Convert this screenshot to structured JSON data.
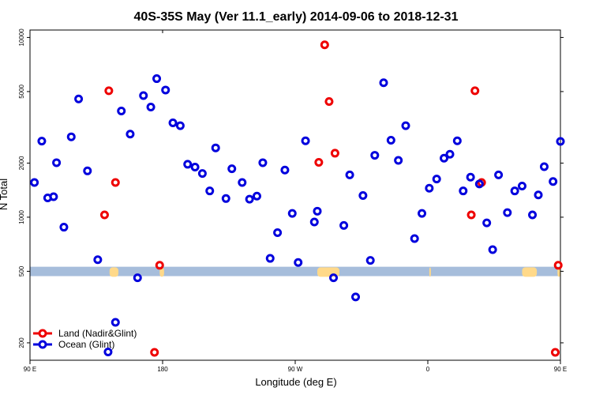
{
  "chart_data": {
    "type": "scatter",
    "title": "40S-35S May (Ver 11.1_early)   2014-09-06 to 2018-12-31",
    "xlabel": "Longitude (deg E)",
    "ylabel": "N Total",
    "y_scale": "log",
    "xlim": [
      90,
      450
    ],
    "ylim": [
      160,
      11000
    ],
    "x_ticks": [
      {
        "value": 90,
        "label": "90 E"
      },
      {
        "value": 180,
        "label": "180"
      },
      {
        "value": 270,
        "label": "90 W"
      },
      {
        "value": 360,
        "label": "0"
      },
      {
        "value": 450,
        "label": "90 E"
      }
    ],
    "x_ticks_secondary": [
      {
        "value": 90,
        "label": "90 E"
      },
      {
        "value": 180,
        "label": "180"
      }
    ],
    "y_ticks": [
      200,
      500,
      1000,
      2000,
      5000,
      10000
    ],
    "grid": false,
    "legend_position": "bottom-left",
    "band": {
      "y_low": 470,
      "y_high": 530,
      "color": "#a6bddb"
    },
    "land_patches": {
      "color": "#ffd98a",
      "x": [
        [
          144,
          150
        ],
        [
          178,
          181
        ],
        [
          285,
          300
        ],
        [
          361,
          362
        ],
        [
          424,
          434
        ],
        [
          448,
          450
        ]
      ]
    },
    "series": [
      {
        "name": "Land (Nadir&Glint)",
        "color": "#ee0000",
        "points": [
          [
            140.6,
            1030
          ],
          [
            143.5,
            5050
          ],
          [
            148,
            1560
          ],
          [
            174.5,
            177
          ],
          [
            178,
            540
          ],
          [
            286,
            2020
          ],
          [
            290,
            9100
          ],
          [
            293,
            4400
          ],
          [
            297,
            2270
          ],
          [
            389.5,
            1030
          ],
          [
            392,
            5050
          ],
          [
            396.5,
            1560
          ],
          [
            446.5,
            177
          ],
          [
            448.5,
            540
          ]
        ]
      },
      {
        "name": "Ocean (Glint)",
        "color": "#0000dd",
        "points": [
          [
            93,
            1560
          ],
          [
            98,
            2650
          ],
          [
            102,
            1280
          ],
          [
            106,
            1300
          ],
          [
            108,
            2010
          ],
          [
            113,
            880
          ],
          [
            118,
            2800
          ],
          [
            123,
            4550
          ],
          [
            129,
            1810
          ],
          [
            136,
            580
          ],
          [
            143,
            178
          ],
          [
            148,
            260
          ],
          [
            152,
            3900
          ],
          [
            158,
            2900
          ],
          [
            163,
            460
          ],
          [
            167,
            4750
          ],
          [
            172,
            4100
          ],
          [
            176,
            5900
          ],
          [
            182,
            5100
          ],
          [
            187,
            3350
          ],
          [
            192,
            3230
          ],
          [
            197,
            1970
          ],
          [
            202,
            1900
          ],
          [
            207,
            1750
          ],
          [
            212,
            1400
          ],
          [
            216,
            2430
          ],
          [
            223,
            1270
          ],
          [
            227,
            1860
          ],
          [
            234,
            1560
          ],
          [
            239,
            1260
          ],
          [
            244,
            1310
          ],
          [
            248,
            2010
          ],
          [
            253,
            590
          ],
          [
            258,
            820
          ],
          [
            263,
            1830
          ],
          [
            268,
            1050
          ],
          [
            272,
            560
          ],
          [
            277,
            2660
          ],
          [
            283,
            940
          ],
          [
            285,
            1080
          ],
          [
            296,
            460
          ],
          [
            303,
            900
          ],
          [
            307,
            1720
          ],
          [
            311,
            360
          ],
          [
            316,
            1320
          ],
          [
            321,
            575
          ],
          [
            324,
            2210
          ],
          [
            330,
            5600
          ],
          [
            335,
            2680
          ],
          [
            340,
            2070
          ],
          [
            345,
            3230
          ],
          [
            351,
            760
          ],
          [
            356,
            1050
          ],
          [
            361,
            1450
          ],
          [
            366,
            1630
          ],
          [
            371,
            2130
          ],
          [
            375,
            2240
          ],
          [
            380,
            2660
          ],
          [
            384,
            1400
          ],
          [
            389,
            1670
          ],
          [
            395,
            1530
          ],
          [
            400,
            930
          ],
          [
            404,
            660
          ],
          [
            408,
            1720
          ],
          [
            414,
            1060
          ],
          [
            419,
            1400
          ],
          [
            424,
            1490
          ],
          [
            431,
            1030
          ],
          [
            435,
            1330
          ],
          [
            439,
            1910
          ],
          [
            445,
            1580
          ],
          [
            450,
            2640
          ]
        ]
      }
    ]
  }
}
